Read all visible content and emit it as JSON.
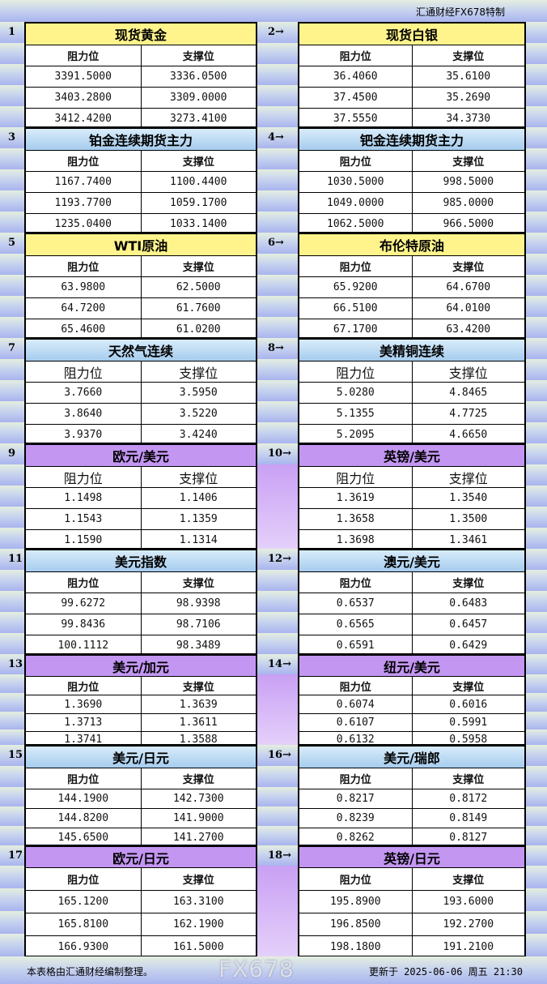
{
  "brand": "汇通财经FX678特制",
  "headers": {
    "resistance": "阻力位",
    "support": "支撑位"
  },
  "colors": {
    "yellow": "#fff48c",
    "blue": "#a6ccee",
    "purple": "#c396f2"
  },
  "blocks": [
    {
      "theme": "yellow",
      "left": {
        "num": "1",
        "title": "现货黄金",
        "rows": [
          [
            "3391.5000",
            "3336.0500"
          ],
          [
            "3403.2800",
            "3309.0000"
          ],
          [
            "3412.4200",
            "3273.4100"
          ]
        ]
      },
      "right": {
        "num": "2→",
        "title": "现货白银",
        "rows": [
          [
            "36.4060",
            "35.6100"
          ],
          [
            "37.4500",
            "35.2690"
          ],
          [
            "37.5550",
            "34.3730"
          ]
        ]
      }
    },
    {
      "theme": "blue",
      "left": {
        "num": "3",
        "title": "铂金连续期货主力",
        "rows": [
          [
            "1167.7400",
            "1100.4400"
          ],
          [
            "1193.7700",
            "1059.1700"
          ],
          [
            "1235.0400",
            "1033.1400"
          ]
        ]
      },
      "right": {
        "num": "4→",
        "title": "钯金连续期货主力",
        "rows": [
          [
            "1030.5000",
            "998.5000"
          ],
          [
            "1049.0000",
            "985.0000"
          ],
          [
            "1062.5000",
            "966.5000"
          ]
        ]
      }
    },
    {
      "theme": "yellow",
      "left": {
        "num": "5",
        "title": "WTI原油",
        "rows": [
          [
            "63.9800",
            "62.5000"
          ],
          [
            "64.7200",
            "61.7600"
          ],
          [
            "65.4600",
            "61.0200"
          ]
        ]
      },
      "right": {
        "num": "6→",
        "title": "布伦特原油",
        "rows": [
          [
            "65.9200",
            "64.6700"
          ],
          [
            "66.5100",
            "64.0100"
          ],
          [
            "67.1700",
            "63.4200"
          ]
        ]
      }
    },
    {
      "theme": "blue",
      "bighdr": true,
      "left": {
        "num": "7",
        "title": "天然气连续",
        "rows": [
          [
            "3.7660",
            "3.5950"
          ],
          [
            "3.8640",
            "3.5220"
          ],
          [
            "3.9370",
            "3.4240"
          ]
        ]
      },
      "right": {
        "num": "8→",
        "title": "美精铜连续",
        "rows": [
          [
            "5.0280",
            "4.8465"
          ],
          [
            "5.1355",
            "4.7725"
          ],
          [
            "5.2095",
            "4.6650"
          ]
        ]
      }
    },
    {
      "theme": "purple",
      "bighdr": true,
      "left": {
        "num": "9",
        "title": "欧元/美元",
        "rows": [
          [
            "1.1498",
            "1.1406"
          ],
          [
            "1.1543",
            "1.1359"
          ],
          [
            "1.1590",
            "1.1314"
          ]
        ]
      },
      "right": {
        "num": "10→",
        "title": "英镑/美元",
        "rows": [
          [
            "1.3619",
            "1.3540"
          ],
          [
            "1.3658",
            "1.3500"
          ],
          [
            "1.3698",
            "1.3461"
          ]
        ]
      }
    },
    {
      "theme": "blue",
      "left": {
        "num": "11",
        "title": "美元指数",
        "rows": [
          [
            "99.6272",
            "98.9398"
          ],
          [
            "99.8436",
            "98.7106"
          ],
          [
            "100.1112",
            "98.3489"
          ]
        ]
      },
      "right": {
        "num": "12→",
        "title": "澳元/美元",
        "rows": [
          [
            "0.6537",
            "0.6483"
          ],
          [
            "0.6565",
            "0.6457"
          ],
          [
            "0.6591",
            "0.6429"
          ]
        ]
      }
    },
    {
      "theme": "purple",
      "left": {
        "num": "13",
        "title": "美元/加元",
        "rows": [
          [
            "1.3690",
            "1.3639"
          ],
          [
            "1.3713",
            "1.3611"
          ],
          [
            "1.3741",
            "1.3588"
          ]
        ]
      },
      "right": {
        "num": "14→",
        "title": "纽元/美元",
        "rows": [
          [
            "0.6074",
            "0.6016"
          ],
          [
            "0.6107",
            "0.5991"
          ],
          [
            "0.6132",
            "0.5958"
          ]
        ]
      }
    },
    {
      "theme": "blue",
      "left": {
        "num": "15",
        "title": "美元/日元",
        "rows": [
          [
            "144.1900",
            "142.7300"
          ],
          [
            "144.8200",
            "141.9000"
          ],
          [
            "145.6500",
            "141.2700"
          ]
        ]
      },
      "right": {
        "num": "16→",
        "title": "美元/瑞郎",
        "rows": [
          [
            "0.8217",
            "0.8172"
          ],
          [
            "0.8239",
            "0.8149"
          ],
          [
            "0.8262",
            "0.8127"
          ]
        ]
      }
    },
    {
      "theme": "purple",
      "left": {
        "num": "17",
        "title": "欧元/日元",
        "rows": [
          [
            "165.1200",
            "163.3100"
          ],
          [
            "165.8100",
            "162.1900"
          ],
          [
            "166.9300",
            "161.5000"
          ]
        ]
      },
      "right": {
        "num": "18→",
        "title": "英镑/日元",
        "rows": [
          [
            "195.8900",
            "193.6000"
          ],
          [
            "196.8500",
            "192.2700"
          ],
          [
            "198.1800",
            "191.2100"
          ]
        ]
      }
    }
  ],
  "footer": {
    "note": "本表格由汇通财经编制整理。",
    "updated": "更新于 2025-06-06 周五 21:30"
  },
  "watermark": "FX678"
}
